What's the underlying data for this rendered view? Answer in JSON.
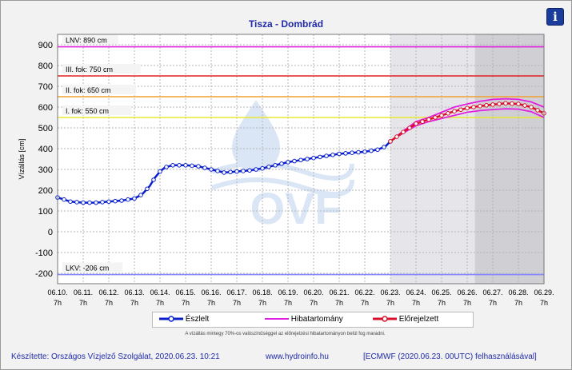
{
  "title": "Tisza - Dombrád",
  "info_button": "i",
  "legend": {
    "observed": "Észlelt",
    "error_band": "Hibatartomány",
    "forecast": "Előrejelzett"
  },
  "note": "A vízállás mintegy 70%-os valószínűséggel az előrejelzési hibatartományon belül fog maradni.",
  "footer": {
    "maker": "Készítette: Országos Vízjelző Szolgálat, 2020.06.23. 10:21",
    "url": "www.hydroinfo.hu",
    "model": "[ECMWF (2020.06.23. 00UTC) felhasználásával]"
  },
  "watermark": "OVF",
  "colors": {
    "observed": "#0a1fcc",
    "forecast": "#d8102a",
    "band": "#e020e0",
    "lnv": "#e020e0",
    "iii": "#e02020",
    "ii": "#f0a030",
    "i": "#e8e830",
    "lkv": "#8888ff"
  },
  "chart_data": {
    "type": "line",
    "ylabel": "Vízállás [cm]",
    "ylim": [
      -250,
      950
    ],
    "yticks": [
      -200,
      -100,
      0,
      100,
      200,
      300,
      400,
      500,
      600,
      700,
      800,
      900
    ],
    "x_day_labels": [
      "06.10.",
      "06.11.",
      "06.12.",
      "06.13.",
      "06.14.",
      "06.15.",
      "06.16.",
      "06.17.",
      "06.18.",
      "06.19.",
      "06.20.",
      "06.21.",
      "06.22.",
      "06.23.",
      "06.24.",
      "06.25.",
      "06.26.",
      "06.27.",
      "06.28.",
      "06.29."
    ],
    "x_hour_label": "7h",
    "thresholds": [
      {
        "name": "LNV: 890 cm",
        "value": 890
      },
      {
        "name": "III. fok: 750 cm",
        "value": 750
      },
      {
        "name": "II. fok: 650 cm",
        "value": 650
      },
      {
        "name": "I. fok: 550 cm",
        "value": 550
      },
      {
        "name": "LKV: -206 cm",
        "value": -206
      }
    ],
    "observed": {
      "x_days": [
        0,
        0.5,
        1,
        1.5,
        2,
        2.5,
        3,
        3.3,
        3.6,
        3.8,
        4,
        4.2,
        4.5,
        5,
        5.5,
        6,
        6.5,
        7,
        7.5,
        8,
        8.5,
        9,
        9.5,
        10,
        10.5,
        11,
        11.5,
        12,
        12.5,
        12.8,
        13
      ],
      "values": [
        165,
        145,
        140,
        140,
        145,
        150,
        160,
        180,
        220,
        260,
        290,
        310,
        320,
        320,
        315,
        300,
        285,
        290,
        295,
        305,
        320,
        335,
        345,
        355,
        365,
        375,
        380,
        385,
        395,
        410,
        435
      ]
    },
    "forecast": {
      "x_days": [
        13,
        13.5,
        14,
        14.5,
        15,
        15.5,
        16,
        16.5,
        17,
        17.5,
        18,
        18.5,
        19
      ],
      "values": [
        435,
        480,
        520,
        540,
        560,
        580,
        595,
        605,
        612,
        618,
        615,
        600,
        570
      ]
    },
    "band_upper": {
      "x_days": [
        13,
        13.5,
        14,
        14.5,
        15,
        15.5,
        16,
        16.5,
        17,
        17.5,
        18,
        18.5,
        19
      ],
      "values": [
        435,
        485,
        530,
        550,
        575,
        600,
        615,
        628,
        637,
        640,
        637,
        625,
        600
      ]
    },
    "band_lower": {
      "x_days": [
        13,
        13.5,
        14,
        14.5,
        15,
        15.5,
        16,
        16.5,
        17,
        17.5,
        18,
        18.5,
        19
      ],
      "values": [
        435,
        475,
        510,
        530,
        545,
        560,
        575,
        583,
        588,
        592,
        590,
        578,
        550
      ]
    }
  }
}
